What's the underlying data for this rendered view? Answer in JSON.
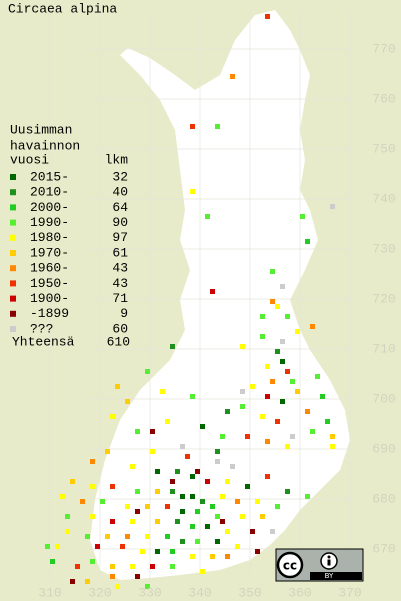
{
  "title": "Circaea alpina",
  "legend": {
    "heading": [
      "Uusimman",
      "havainnon"
    ],
    "col_year": "vuosi",
    "col_count": "lkm",
    "rows": [
      {
        "label": "2015-",
        "count": 32,
        "color": "#006600"
      },
      {
        "label": "2010-",
        "count": 40,
        "color": "#1f8f1f"
      },
      {
        "label": "2000-",
        "count": 64,
        "color": "#22cc22"
      },
      {
        "label": "1990-",
        "count": 90,
        "color": "#55ee33"
      },
      {
        "label": "1980-",
        "count": 97,
        "color": "#ffff00"
      },
      {
        "label": "1970-",
        "count": 61,
        "color": "#ffcc00"
      },
      {
        "label": "1960-",
        "count": 43,
        "color": "#ff8800"
      },
      {
        "label": "1950-",
        "count": 43,
        "color": "#ee3300"
      },
      {
        "label": "1900-",
        "count": 71,
        "color": "#cc0000"
      },
      {
        "label": "-1899",
        "count": 9,
        "color": "#880000"
      },
      {
        "label": "???",
        "count": 60,
        "color": "#cccccc"
      }
    ],
    "total_label": "Yhteensä",
    "total": 610
  },
  "xticks": [
    310,
    320,
    330,
    340,
    350,
    360,
    370
  ],
  "yticks": [
    670,
    680,
    690,
    700,
    710,
    720,
    730,
    740,
    750,
    760,
    770
  ],
  "badge": {
    "cc": "cc",
    "by": "BY"
  },
  "points": [
    [
      346,
      764,
      6
    ],
    [
      353,
      776,
      7
    ],
    [
      338,
      754,
      7
    ],
    [
      343,
      754,
      3
    ],
    [
      360,
      736,
      3
    ],
    [
      341,
      736,
      3
    ],
    [
      361,
      731,
      2
    ],
    [
      338,
      741,
      4
    ],
    [
      354,
      725,
      3
    ],
    [
      342,
      721,
      8
    ],
    [
      354,
      719,
      6
    ],
    [
      352,
      712,
      3
    ],
    [
      348,
      710,
      4
    ],
    [
      355,
      709,
      1
    ],
    [
      356,
      707,
      0
    ],
    [
      353,
      706,
      4
    ],
    [
      357,
      705,
      7
    ],
    [
      354,
      703,
      6
    ],
    [
      358,
      703,
      3
    ],
    [
      350,
      702,
      4
    ],
    [
      353,
      700,
      8
    ],
    [
      356,
      699,
      0
    ],
    [
      359,
      701,
      5
    ],
    [
      348,
      698,
      3
    ],
    [
      361,
      697,
      6
    ],
    [
      345,
      697,
      1
    ],
    [
      352,
      696,
      4
    ],
    [
      355,
      695,
      7
    ],
    [
      338,
      700,
      3
    ],
    [
      332,
      701,
      4
    ],
    [
      325,
      699,
      5
    ],
    [
      322,
      696,
      4
    ],
    [
      327,
      693,
      3
    ],
    [
      333,
      695,
      4
    ],
    [
      340,
      694,
      0
    ],
    [
      344,
      692,
      3
    ],
    [
      349,
      692,
      7
    ],
    [
      353,
      691,
      6
    ],
    [
      357,
      690,
      4
    ],
    [
      362,
      693,
      3
    ],
    [
      365,
      695,
      2
    ],
    [
      366,
      690,
      4
    ],
    [
      343,
      689,
      1
    ],
    [
      337,
      688,
      7
    ],
    [
      330,
      689,
      4
    ],
    [
      321,
      689,
      5
    ],
    [
      318,
      687,
      6
    ],
    [
      326,
      686,
      4
    ],
    [
      331,
      685,
      0
    ],
    [
      335,
      685,
      1
    ],
    [
      338,
      684,
      0
    ],
    [
      341,
      683,
      8
    ],
    [
      345,
      683,
      4
    ],
    [
      349,
      682,
      0
    ],
    [
      353,
      684,
      7
    ],
    [
      357,
      681,
      1
    ],
    [
      361,
      680,
      3
    ],
    [
      314,
      683,
      5
    ],
    [
      318,
      682,
      4
    ],
    [
      322,
      682,
      7
    ],
    [
      327,
      681,
      3
    ],
    [
      331,
      681,
      5
    ],
    [
      334,
      681,
      1
    ],
    [
      336,
      680,
      0
    ],
    [
      338,
      680,
      0
    ],
    [
      340,
      679,
      1
    ],
    [
      342,
      678,
      2
    ],
    [
      344,
      680,
      4
    ],
    [
      347,
      679,
      6
    ],
    [
      351,
      679,
      4
    ],
    [
      355,
      678,
      3
    ],
    [
      312,
      680,
      4
    ],
    [
      316,
      679,
      6
    ],
    [
      320,
      679,
      3
    ],
    [
      325,
      678,
      4
    ],
    [
      329,
      678,
      5
    ],
    [
      333,
      678,
      7
    ],
    [
      336,
      677,
      0
    ],
    [
      339,
      677,
      2
    ],
    [
      343,
      676,
      3
    ],
    [
      348,
      676,
      4
    ],
    [
      352,
      676,
      5
    ],
    [
      313,
      676,
      3
    ],
    [
      318,
      676,
      4
    ],
    [
      322,
      675,
      8
    ],
    [
      326,
      675,
      4
    ],
    [
      331,
      675,
      5
    ],
    [
      335,
      675,
      1
    ],
    [
      338,
      674,
      2
    ],
    [
      341,
      674,
      0
    ],
    [
      345,
      673,
      4
    ],
    [
      350,
      673,
      9
    ],
    [
      354,
      673,
      10
    ],
    [
      313,
      673,
      4
    ],
    [
      317,
      672,
      3
    ],
    [
      321,
      672,
      5
    ],
    [
      325,
      672,
      6
    ],
    [
      329,
      672,
      4
    ],
    [
      333,
      672,
      2
    ],
    [
      336,
      671,
      1
    ],
    [
      339,
      671,
      3
    ],
    [
      343,
      671,
      0
    ],
    [
      347,
      670,
      4
    ],
    [
      319,
      670,
      8
    ],
    [
      324,
      670,
      7
    ],
    [
      328,
      669,
      4
    ],
    [
      331,
      669,
      0
    ],
    [
      334,
      669,
      2
    ],
    [
      338,
      668,
      4
    ],
    [
      342,
      668,
      5
    ],
    [
      345,
      668,
      6
    ],
    [
      315,
      666,
      7
    ],
    [
      318,
      667,
      3
    ],
    [
      322,
      666,
      5
    ],
    [
      326,
      666,
      4
    ],
    [
      330,
      666,
      8
    ],
    [
      334,
      666,
      3
    ],
    [
      340,
      665,
      4
    ],
    [
      322,
      664,
      6
    ],
    [
      327,
      664,
      9
    ],
    [
      311,
      670,
      4
    ],
    [
      309,
      670,
      3
    ],
    [
      310,
      667,
      2
    ],
    [
      317,
      663,
      5
    ],
    [
      323,
      662,
      4
    ],
    [
      329,
      662,
      3
    ],
    [
      346,
      686,
      10
    ],
    [
      343,
      687,
      10
    ],
    [
      336,
      690,
      10
    ],
    [
      358,
      692,
      10
    ],
    [
      348,
      701,
      10
    ],
    [
      356,
      711,
      10
    ],
    [
      356,
      722,
      10
    ],
    [
      366,
      738,
      10
    ],
    [
      330,
      693,
      9
    ],
    [
      339,
      685,
      9
    ],
    [
      334,
      683,
      9
    ],
    [
      327,
      677,
      9
    ],
    [
      344,
      675,
      9
    ],
    [
      351,
      669,
      9
    ],
    [
      314,
      663,
      9
    ],
    [
      355,
      718,
      4
    ],
    [
      357,
      716,
      3
    ],
    [
      352,
      716,
      3
    ],
    [
      362,
      714,
      6
    ],
    [
      359,
      713,
      4
    ],
    [
      363,
      704,
      3
    ],
    [
      364,
      700,
      2
    ],
    [
      366,
      692,
      5
    ],
    [
      329,
      705,
      3
    ],
    [
      323,
      702,
      5
    ],
    [
      334,
      710,
      1
    ]
  ]
}
